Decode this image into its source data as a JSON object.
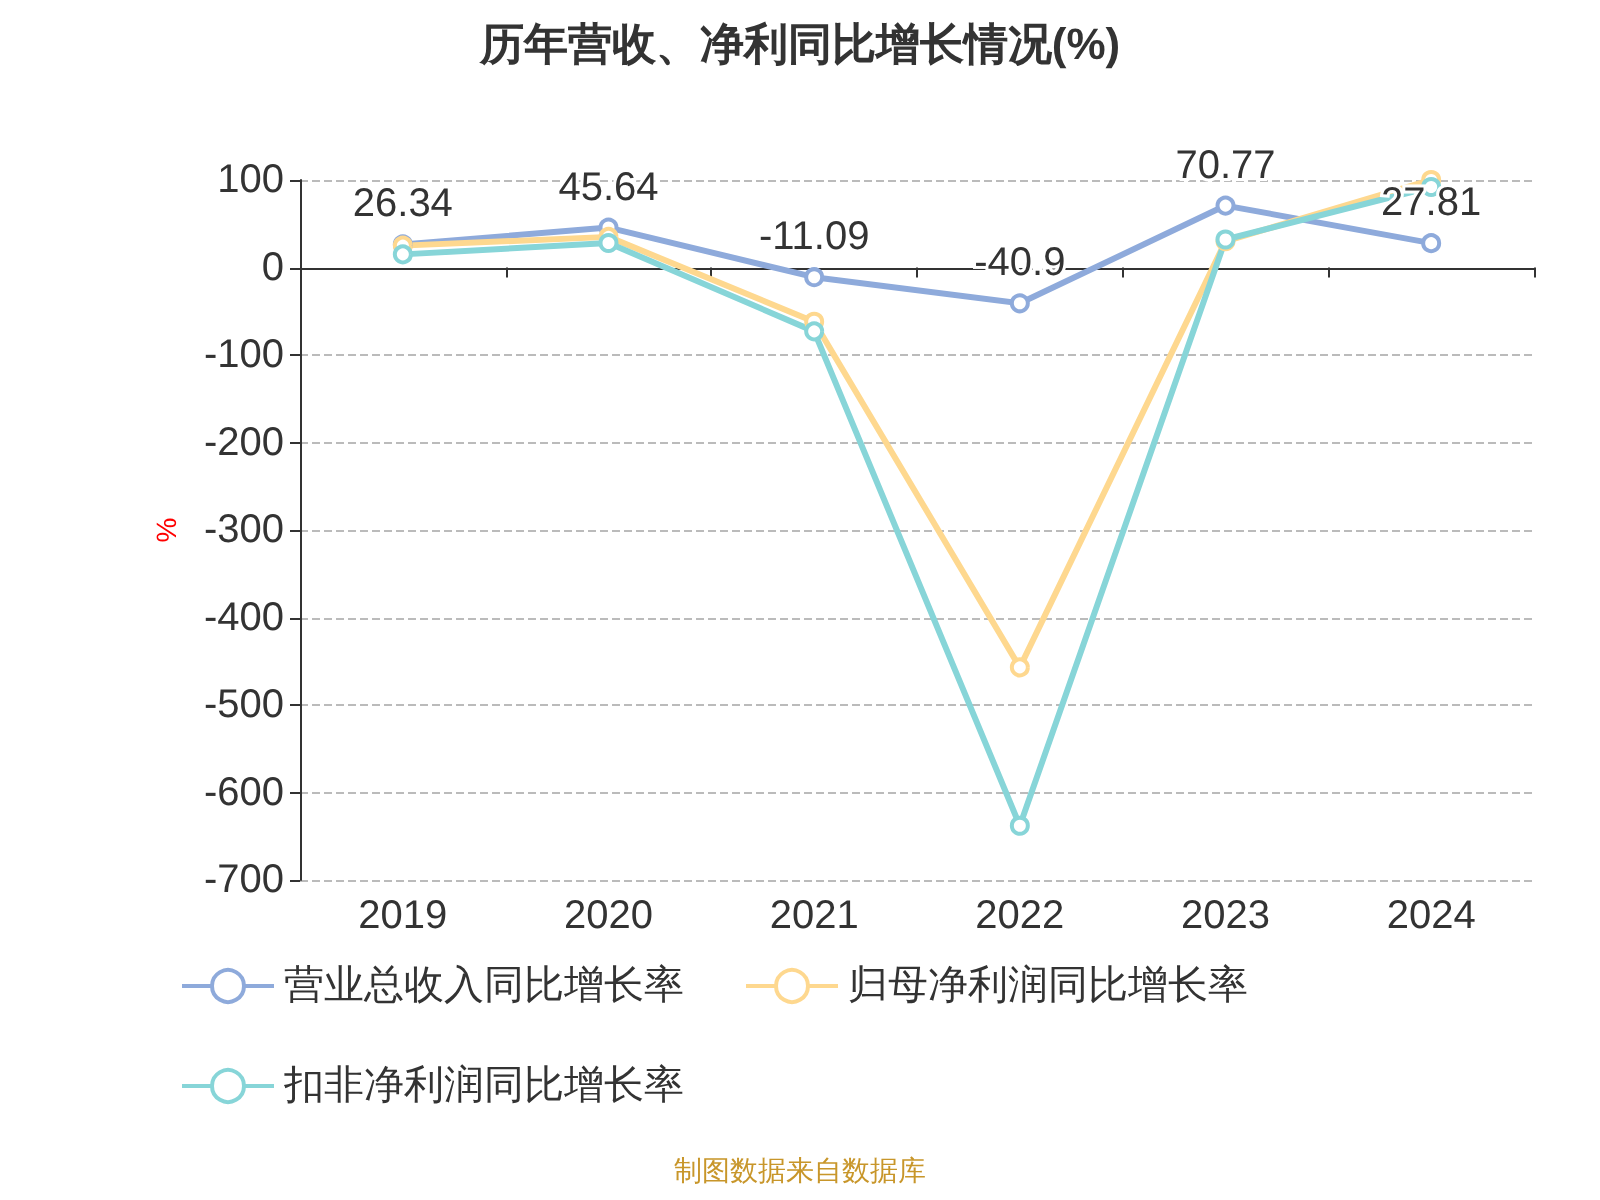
{
  "chart_data": {
    "type": "line",
    "title": "历年营收、净利同比增长情况(%)",
    "ylabel": "%",
    "categories": [
      "2019",
      "2020",
      "2021",
      "2022",
      "2023",
      "2024"
    ],
    "series": [
      {
        "name": "营业总收入同比增长率",
        "color": "#8eaadb",
        "values": [
          26.34,
          45.64,
          -11.09,
          -40.9,
          70.77,
          27.81
        ],
        "value_labels": [
          "26.34",
          "45.64",
          "-11.09",
          "-40.9",
          "70.77",
          "27.81"
        ]
      },
      {
        "name": "归母净利润同比增长率",
        "color": "#fed88f",
        "values": [
          25,
          35,
          -62,
          -457,
          30,
          100
        ]
      },
      {
        "name": "扣非净利润同比增长率",
        "color": "#87d5d8",
        "values": [
          15,
          28,
          -73,
          -638,
          32,
          92
        ]
      }
    ],
    "ylim": [
      -700,
      100
    ],
    "yticks": [
      -700,
      -600,
      -500,
      -400,
      -300,
      -200,
      -100,
      0,
      100
    ],
    "grid": "y",
    "legend": "bottom",
    "marker": "circle",
    "line_style": "solid",
    "annotations": [
      "制图数据来自数据库"
    ]
  }
}
